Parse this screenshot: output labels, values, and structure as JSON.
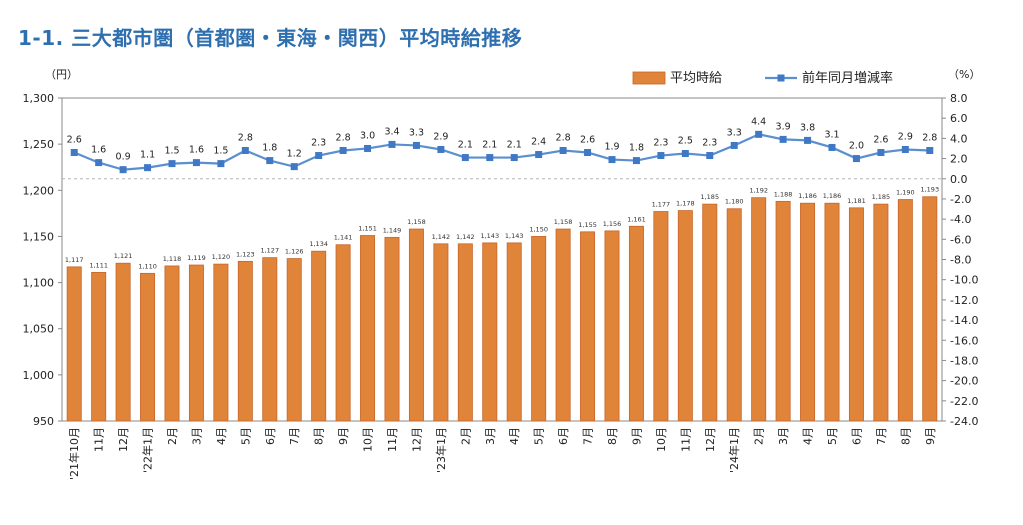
{
  "title": "1-1. 三大都市圏（首都圏・東海・関西）平均時給推移",
  "chart_data": {
    "type": "bar",
    "title": "1-1. 三大都市圏（首都圏・東海・関西）平均時給推移",
    "left_unit": "（円）",
    "right_unit": "（%）",
    "categories": [
      "'21年10月",
      "11月",
      "12月",
      "'22年1月",
      "2月",
      "3月",
      "4月",
      "5月",
      "6月",
      "7月",
      "8月",
      "9月",
      "10月",
      "11月",
      "12月",
      "'23年1月",
      "2月",
      "3月",
      "4月",
      "5月",
      "6月",
      "7月",
      "8月",
      "9月",
      "10月",
      "11月",
      "12月",
      "'24年1月",
      "2月",
      "3月",
      "4月",
      "5月",
      "6月",
      "7月",
      "8月",
      "9月"
    ],
    "series": [
      {
        "name": "平均時給",
        "type": "bar",
        "axis": "left",
        "color": "#e0843a",
        "values": [
          1117,
          1111,
          1121,
          1110,
          1118,
          1119,
          1120,
          1123,
          1127,
          1126,
          1134,
          1141,
          1151,
          1149,
          1158,
          1142,
          1142,
          1143,
          1143,
          1150,
          1158,
          1155,
          1156,
          1161,
          1177,
          1178,
          1185,
          1180,
          1192,
          1188,
          1186,
          1186,
          1181,
          1185,
          1190,
          1193
        ]
      },
      {
        "name": "前年同月増減率",
        "type": "line",
        "axis": "right",
        "color": "#5b8fd0",
        "values": [
          2.6,
          1.6,
          0.9,
          1.1,
          1.5,
          1.6,
          1.5,
          2.8,
          1.8,
          1.2,
          2.3,
          2.8,
          3.0,
          3.4,
          3.3,
          2.9,
          2.1,
          2.1,
          2.1,
          2.4,
          2.8,
          2.6,
          1.9,
          1.8,
          2.3,
          2.5,
          2.3,
          3.3,
          4.4,
          3.9,
          3.8,
          3.1,
          2.0,
          2.6,
          2.9,
          2.8
        ]
      }
    ],
    "left_axis": {
      "ylim": [
        950,
        1300
      ],
      "ticks": [
        "950",
        "1,000",
        "1,050",
        "1,100",
        "1,150",
        "1,200",
        "1,250",
        "1,300"
      ]
    },
    "right_axis": {
      "ylim": [
        -24,
        8
      ],
      "ticks": [
        "-24.0",
        "-22.0",
        "-20.0",
        "-18.0",
        "-16.0",
        "-14.0",
        "-12.0",
        "-10.0",
        "-8.0",
        "-6.0",
        "-4.0",
        "-2.0",
        "0.0",
        "2.0",
        "4.0",
        "6.0",
        "8.0"
      ]
    },
    "legend_position": "top-right",
    "grid": false,
    "reference_line": 0
  }
}
